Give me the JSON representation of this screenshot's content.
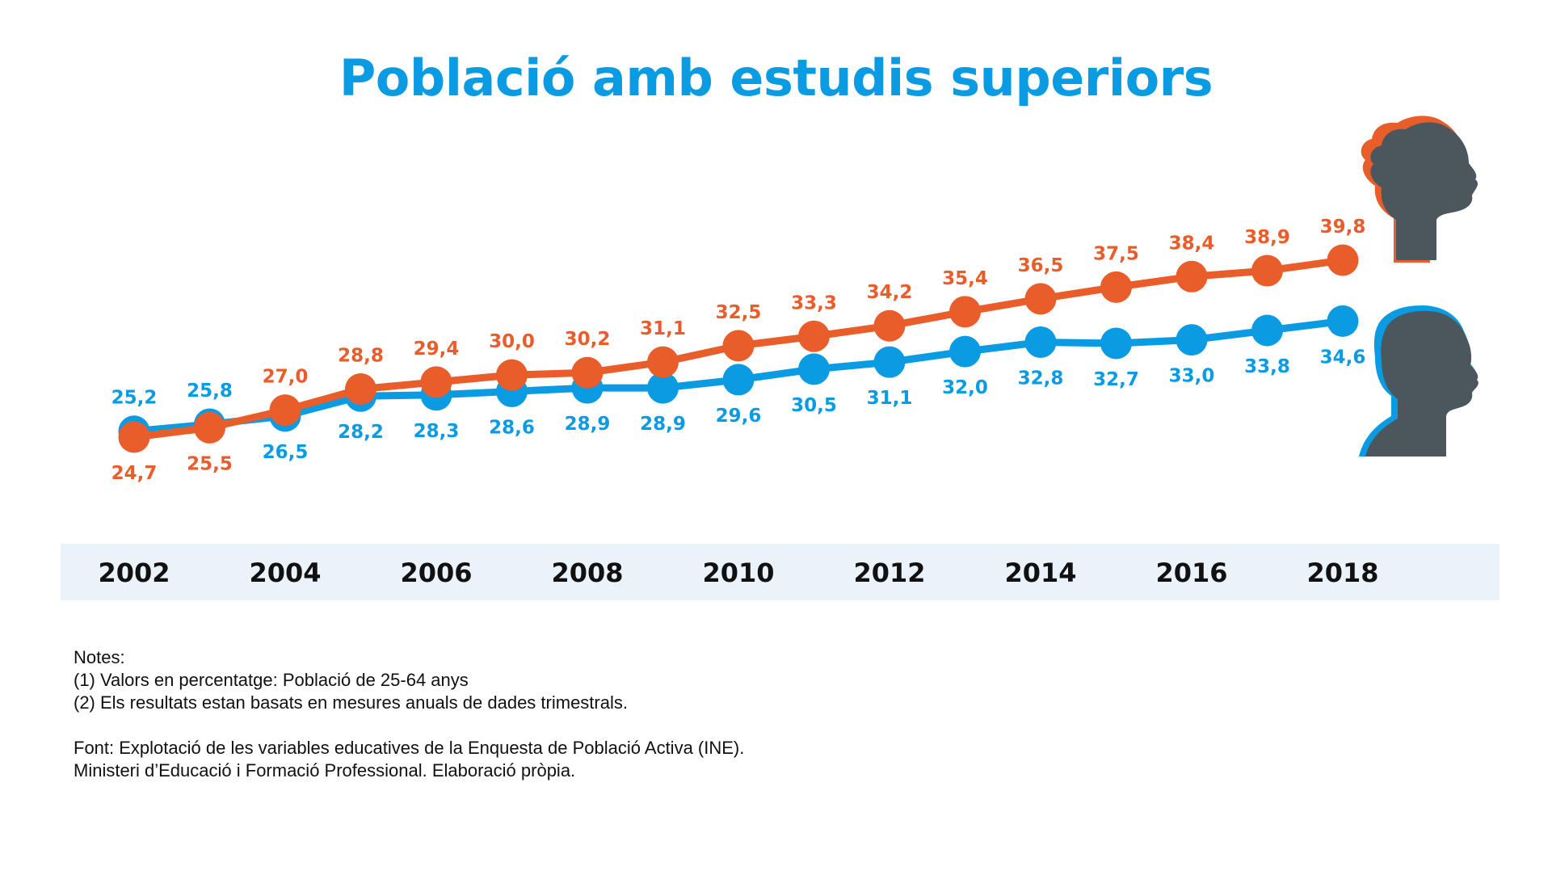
{
  "title": "Població amb estudis superiors",
  "colors": {
    "women": "#e95d2a",
    "men": "#0a9be2",
    "title": "#0a9be2",
    "axis_band": "#eaf2fa",
    "silhouette": "#4c565d"
  },
  "chart_data": {
    "type": "line",
    "title": "Població amb estudis superiors",
    "xlabel": "",
    "ylabel": "",
    "ylim": [
      20,
      42
    ],
    "grid": false,
    "x": [
      2002,
      2003,
      2004,
      2005,
      2006,
      2007,
      2008,
      2009,
      2010,
      2011,
      2012,
      2013,
      2014,
      2015,
      2016,
      2017,
      2018
    ],
    "x_tick_labels": [
      "2002",
      "2004",
      "2006",
      "2008",
      "2010",
      "2012",
      "2014",
      "2016",
      "2018"
    ],
    "series": [
      {
        "key": "women",
        "icon": "woman-silhouette-icon",
        "values": [
          24.7,
          25.5,
          27.0,
          28.8,
          29.4,
          30.0,
          30.2,
          31.1,
          32.5,
          33.3,
          34.2,
          35.4,
          36.5,
          37.5,
          38.4,
          38.9,
          39.8
        ],
        "labels": [
          "24,7",
          "25,5",
          "27,0",
          "28,8",
          "29,4",
          "30,0",
          "30,2",
          "31,1",
          "32,5",
          "33,3",
          "34,2",
          "35,4",
          "36,5",
          "37,5",
          "38,4",
          "38,9",
          "39,8"
        ],
        "label_position": [
          "below",
          "below",
          "above",
          "above",
          "above",
          "above",
          "above",
          "above",
          "above",
          "above",
          "above",
          "above",
          "above",
          "above",
          "above",
          "above",
          "above"
        ]
      },
      {
        "key": "men",
        "icon": "man-silhouette-icon",
        "values": [
          25.2,
          25.8,
          26.5,
          28.2,
          28.3,
          28.6,
          28.9,
          28.9,
          29.6,
          30.5,
          31.1,
          32.0,
          32.8,
          32.7,
          33.0,
          33.8,
          34.6
        ],
        "labels": [
          "25,2",
          "25,8",
          "26,5",
          "28,2",
          "28,3",
          "28,6",
          "28,9",
          "28,9",
          "29,6",
          "30,5",
          "31,1",
          "32,0",
          "32,8",
          "32,7",
          "33,0",
          "33,8",
          "34,6"
        ],
        "label_position": [
          "above",
          "above",
          "below",
          "below",
          "below",
          "below",
          "below",
          "below",
          "below",
          "below",
          "below",
          "below",
          "below",
          "below",
          "below",
          "below",
          "below"
        ]
      }
    ]
  },
  "notes": {
    "heading": "Notes:",
    "items": [
      "(1) Valors en percentatge: Població de 25-64 anys",
      "(2) Els resultats estan basats en mesures anuals de dades trimestrals."
    ],
    "source": [
      "Font: Explotació de les variables educatives de la Enquesta de Població Activa (INE).",
      "Ministeri d’Educació i Formació Professional. Elaboració pròpia."
    ]
  }
}
